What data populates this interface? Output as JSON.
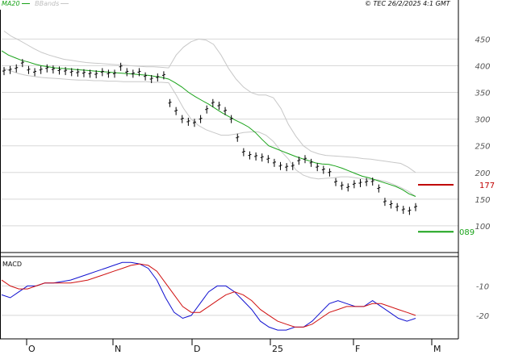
{
  "header": {
    "legend_ma": "MA20",
    "legend_bbands": "BBands",
    "copyright": "© TEC 26/2/2025 4:1 GMT"
  },
  "colors": {
    "ma": "#1aa31a",
    "bbands": "#c8c8c8",
    "price": "#000000",
    "resistance": "#c00000",
    "support": "#1aa31a",
    "macd": "#1010d0",
    "signal": "#d01010",
    "grid": "#d8d8d8"
  },
  "chart_data": [
    {
      "type": "line",
      "name": "price-chart",
      "yticks": [
        "450",
        "400",
        "350",
        "300",
        "250",
        "200",
        "150",
        "100"
      ],
      "ytick_values": [
        450,
        400,
        350,
        300,
        250,
        200,
        150,
        100
      ],
      "ylim": [
        50,
        505
      ],
      "xticks": [
        "O",
        "N",
        "D",
        "25",
        "F",
        "M"
      ],
      "xtick_index": [
        4,
        18,
        31,
        44,
        58,
        72
      ],
      "n_bars": 72,
      "price": [
        390,
        392,
        395,
        405,
        392,
        388,
        392,
        395,
        393,
        391,
        390,
        388,
        387,
        386,
        385,
        384,
        388,
        385,
        385,
        398,
        388,
        385,
        388,
        380,
        375,
        378,
        382,
        330,
        315,
        300,
        295,
        293,
        300,
        318,
        330,
        325,
        315,
        300,
        265,
        238,
        232,
        230,
        228,
        225,
        218,
        212,
        210,
        212,
        222,
        225,
        218,
        210,
        205,
        200,
        182,
        175,
        172,
        178,
        180,
        182,
        183,
        170,
        145,
        140,
        135,
        130,
        128,
        135
      ],
      "ma20": [
        428,
        420,
        415,
        410,
        407,
        403,
        400,
        398,
        396,
        395,
        394,
        393,
        392,
        391,
        390,
        389,
        388,
        387,
        386,
        385,
        384,
        383,
        382,
        380,
        378,
        375,
        368,
        360,
        350,
        342,
        335,
        328,
        320,
        312,
        305,
        298,
        292,
        285,
        275,
        262,
        250,
        245,
        240,
        235,
        230,
        226,
        222,
        218,
        216,
        215,
        212,
        208,
        203,
        198,
        193,
        190,
        186,
        182,
        178,
        174,
        168,
        160,
        155
      ],
      "bb_upper": [
        465,
        455,
        448,
        440,
        432,
        425,
        420,
        416,
        412,
        410,
        408,
        406,
        405,
        404,
        403,
        402,
        401,
        400,
        399,
        398,
        398,
        397,
        396,
        420,
        435,
        445,
        450,
        448,
        440,
        420,
        395,
        375,
        360,
        350,
        345,
        345,
        340,
        320,
        290,
        268,
        250,
        240,
        235,
        232,
        231,
        230,
        229,
        228,
        226,
        225,
        223,
        221,
        219,
        217,
        210,
        200
      ],
      "bb_lower": [
        395,
        390,
        385,
        382,
        380,
        378,
        377,
        376,
        375,
        374,
        373,
        373,
        372,
        372,
        371,
        371,
        370,
        370,
        370,
        370,
        369,
        369,
        368,
        345,
        320,
        300,
        288,
        280,
        275,
        270,
        270,
        272,
        275,
        276,
        276,
        270,
        258,
        240,
        225,
        205,
        195,
        190,
        188,
        189,
        190,
        192,
        192,
        190,
        188,
        187,
        186,
        183,
        178,
        172,
        165,
        155
      ],
      "resistance": {
        "value": 177,
        "label": "177"
      },
      "support": {
        "value": 89,
        "label": "089"
      }
    },
    {
      "type": "line",
      "name": "macd-chart",
      "title": "MACD",
      "yticks": [
        "-10",
        "-20"
      ],
      "ytick_values": [
        -10,
        -20
      ],
      "ylim": [
        -28,
        0
      ],
      "series": [
        {
          "name": "MACD",
          "values": [
            -13,
            -14,
            -12,
            -10,
            -10,
            -9,
            -9,
            -8.5,
            -8,
            -7,
            -6,
            -5,
            -4,
            -3,
            -2,
            -2,
            -2.5,
            -4,
            -8,
            -14,
            -19,
            -21,
            -20,
            -16,
            -12,
            -10,
            -10,
            -12,
            -15,
            -18,
            -22,
            -24,
            -25,
            -25,
            -24,
            -24,
            -22,
            -19,
            -16,
            -15,
            -16,
            -17,
            -17,
            -15,
            -17,
            -19,
            -21,
            -22,
            -21
          ]
        },
        {
          "name": "Signal",
          "values": [
            -8,
            -10,
            -11,
            -11,
            -10,
            -9,
            -9,
            -9,
            -9,
            -8.5,
            -8,
            -7,
            -6,
            -5,
            -4,
            -3,
            -2.5,
            -3,
            -5,
            -9,
            -13,
            -17,
            -19,
            -19,
            -17,
            -15,
            -13,
            -12,
            -13,
            -15,
            -18,
            -20,
            -22,
            -23,
            -24,
            -24,
            -23,
            -21,
            -19,
            -18,
            -17,
            -17,
            -17,
            -16,
            -16,
            -17,
            -18,
            -19,
            -20
          ]
        }
      ]
    }
  ]
}
